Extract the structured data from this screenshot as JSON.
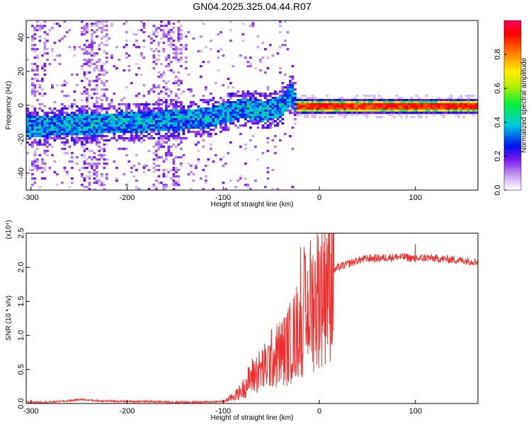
{
  "figure": {
    "title": "GN04.2025.325.04.44.R07"
  },
  "chart_data": [
    {
      "type": "heatmap",
      "xlabel": "Height of straight line (km)",
      "ylabel": "Frequency (Hz)",
      "xlim": [
        -305,
        165
      ],
      "ylim": [
        -50,
        50
      ],
      "xticks": [
        -300,
        -200,
        -100,
        0,
        100
      ],
      "yticks": [
        -40,
        -20,
        0,
        20,
        40
      ],
      "colorbar": {
        "label": "Normalized spectral amplitude",
        "range": [
          0.0,
          1.0
        ],
        "ticks": [
          "0.0",
          "0.2",
          "0.4",
          "0.6",
          "0.8"
        ]
      },
      "ridge": {
        "x": [
          -300,
          -260,
          -220,
          -180,
          -150,
          -120,
          -100,
          -80,
          -60,
          -40,
          -30,
          -25,
          -20,
          0,
          50,
          100,
          165
        ],
        "y": [
          -12,
          -11,
          -10,
          -9,
          -8,
          -7,
          -4,
          -1,
          -3,
          0,
          8,
          0,
          0,
          0,
          0,
          0,
          0
        ]
      }
    },
    {
      "type": "line",
      "xlabel": "Height of straight line (km)",
      "ylabel": "SNR (10 * v/v)",
      "y_multiplier": "(x10⁴)",
      "xlim": [
        -305,
        165
      ],
      "ylim": [
        0,
        2.5
      ],
      "xticks": [
        -300,
        -200,
        -100,
        0,
        100
      ],
      "yticks": [
        "0.0",
        "0.5",
        "1.0",
        "1.5",
        "2.0",
        "2.5"
      ],
      "series": [
        {
          "color": "#ee3030",
          "x": [
            -305,
            -280,
            -260,
            -250,
            -230,
            -200,
            -180,
            -150,
            -120,
            -100,
            -95,
            -90,
            -85,
            -80,
            -75,
            -70,
            -65,
            -60,
            -55,
            -50,
            -45,
            -40,
            -35,
            -30,
            -25,
            -20,
            -15,
            -10,
            -5,
            0,
            5,
            10,
            15,
            20,
            30,
            40,
            50,
            60,
            70,
            80,
            90,
            100,
            110,
            120,
            130,
            140,
            150,
            165
          ],
          "y": [
            0.02,
            0.02,
            0.04,
            0.06,
            0.04,
            0.03,
            0.03,
            0.02,
            0.02,
            0.03,
            0.06,
            0.1,
            0.14,
            0.2,
            0.3,
            0.4,
            0.45,
            0.5,
            0.55,
            0.65,
            0.7,
            0.75,
            0.8,
            0.9,
            1.0,
            1.2,
            1.3,
            1.45,
            1.5,
            1.65,
            1.8,
            1.9,
            1.95,
            2.0,
            2.05,
            2.1,
            2.13,
            2.13,
            2.14,
            2.15,
            2.15,
            2.12,
            2.14,
            2.13,
            2.12,
            2.11,
            2.1,
            2.08
          ]
        }
      ]
    }
  ]
}
